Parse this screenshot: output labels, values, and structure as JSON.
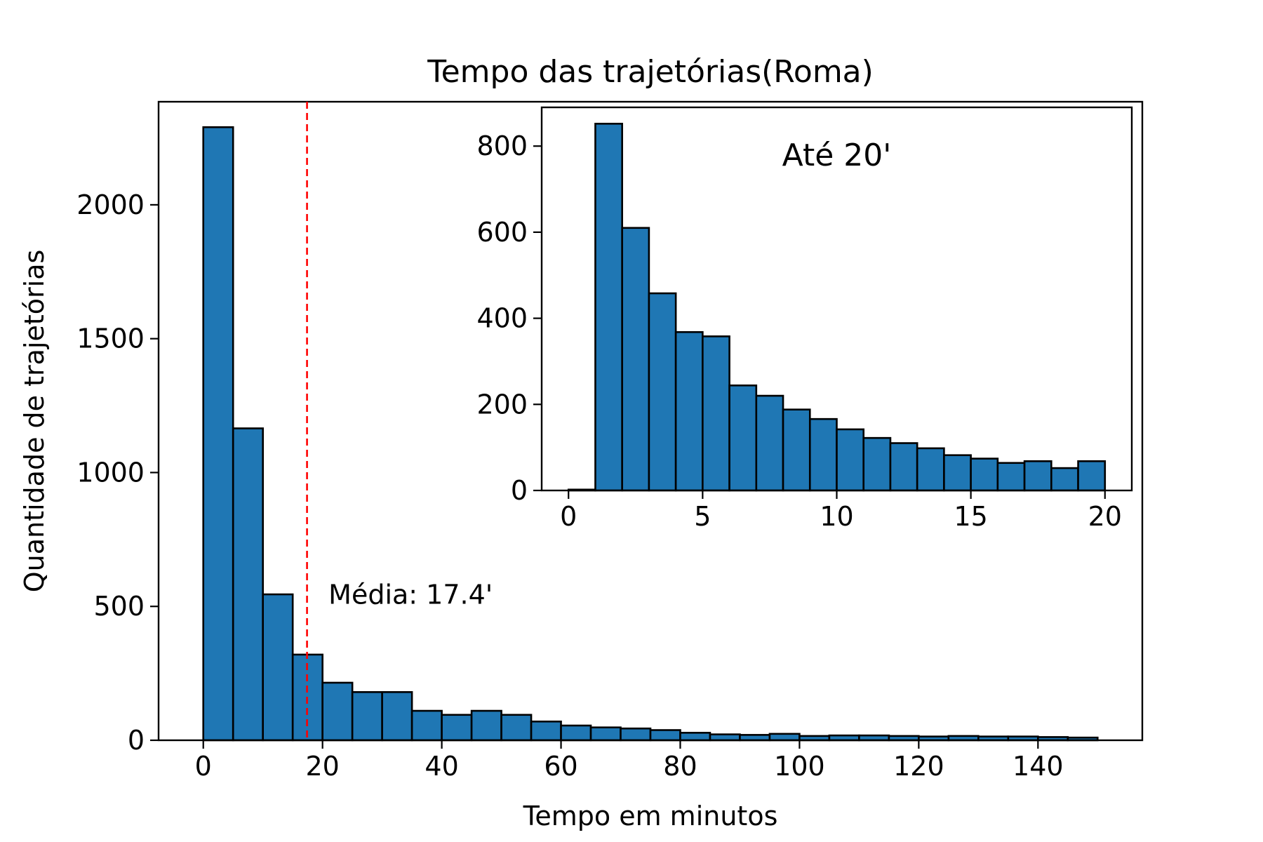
{
  "chart_data": [
    {
      "type": "bar",
      "title": "Tempo das trajetórias(Roma)",
      "xlabel": "Tempo em minutos",
      "ylabel": "Quantidade de trajetórias",
      "xlim": [
        -7.5,
        157.5
      ],
      "ylim": [
        0,
        2385
      ],
      "xticks": [
        0,
        20,
        40,
        60,
        80,
        100,
        120,
        140
      ],
      "yticks": [
        0,
        500,
        1000,
        1500,
        2000
      ],
      "bin_width": 5,
      "bin_edges_start": 0,
      "values": [
        2290,
        1165,
        545,
        320,
        215,
        180,
        180,
        110,
        95,
        110,
        95,
        70,
        55,
        48,
        44,
        38,
        28,
        22,
        20,
        24,
        16,
        18,
        18,
        16,
        14,
        16,
        14,
        14,
        12,
        10
      ],
      "bar_color": "#1f77b4",
      "edge_color": "#000000",
      "mean_line": {
        "x": 17.4,
        "color": "#ff0000",
        "style": "dashed",
        "label": "Média: 17.4'",
        "label_x": 21,
        "label_y": 510
      },
      "grid": false
    },
    {
      "type": "bar",
      "title": "Até 20'",
      "xlim": [
        -1,
        21
      ],
      "ylim": [
        0,
        890
      ],
      "xticks": [
        0,
        5,
        10,
        15,
        20
      ],
      "yticks": [
        0,
        200,
        400,
        600,
        800
      ],
      "bin_width": 1,
      "bin_edges_start": 0,
      "values": [
        2,
        852,
        610,
        458,
        368,
        358,
        244,
        220,
        188,
        166,
        142,
        122,
        110,
        98,
        82,
        74,
        64,
        68,
        52,
        68
      ],
      "bar_color": "#1f77b4",
      "edge_color": "#000000",
      "grid": false
    }
  ]
}
